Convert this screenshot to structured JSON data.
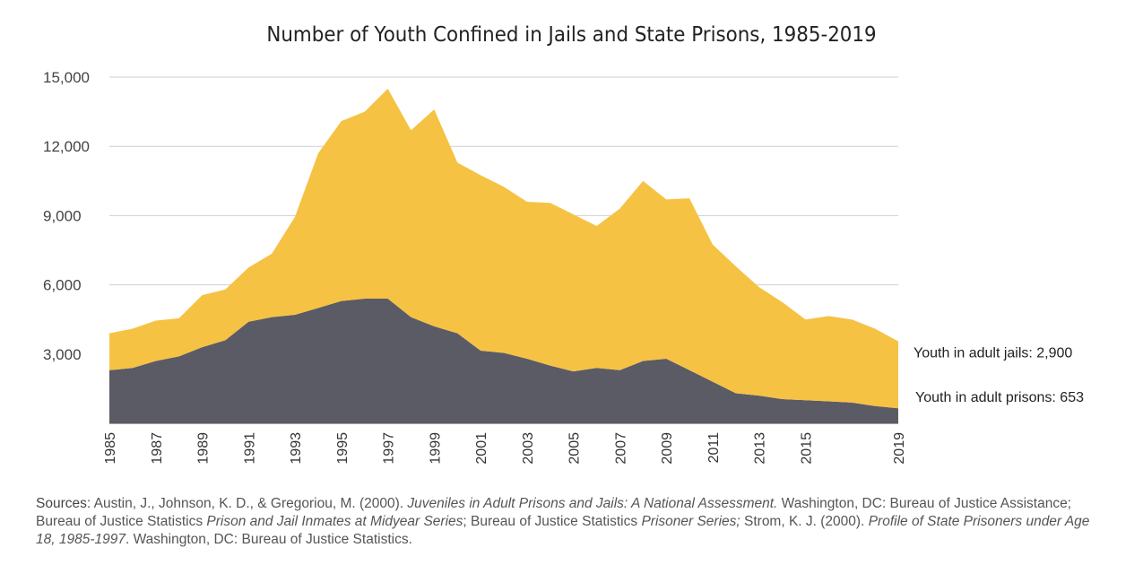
{
  "chart_data": {
    "type": "area",
    "stacked": true,
    "title": "Number of Youth Confined in Jails and State Prisons, 1985-2019",
    "xlabel": "",
    "ylabel": "",
    "ylim": [
      0,
      15000
    ],
    "yticks": [
      "3,000",
      "6,000",
      "9,000",
      "12,000",
      "15,000"
    ],
    "ytick_values": [
      3000,
      6000,
      9000,
      12000,
      15000
    ],
    "xticks": [
      "1985",
      "1987",
      "1989",
      "1991",
      "1993",
      "1995",
      "1997",
      "1999",
      "2001",
      "2003",
      "2005",
      "2007",
      "2009",
      "2011",
      "2013",
      "2015",
      "2019"
    ],
    "xtick_values": [
      1985,
      1987,
      1989,
      1991,
      1993,
      1995,
      1997,
      1999,
      2001,
      2003,
      2005,
      2007,
      2009,
      2011,
      2013,
      2015,
      2019
    ],
    "grid": true,
    "x": [
      1985,
      1986,
      1987,
      1988,
      1989,
      1990,
      1991,
      1992,
      1993,
      1994,
      1995,
      1996,
      1997,
      1998,
      1999,
      2000,
      2001,
      2002,
      2003,
      2004,
      2005,
      2006,
      2007,
      2008,
      2009,
      2010,
      2011,
      2012,
      2013,
      2014,
      2015,
      2016,
      2017,
      2018,
      2019
    ],
    "series": [
      {
        "name": "Youth in adult prisons",
        "color": "#5b5b66",
        "values": [
          2300,
          2400,
          2700,
          2900,
          3300,
          3600,
          4400,
          4600,
          4700,
          5000,
          5300,
          5400,
          5400,
          4600,
          4200,
          3900,
          3150,
          3050,
          2800,
          2500,
          2250,
          2400,
          2300,
          2700,
          2800,
          2300,
          1800,
          1300,
          1200,
          1050,
          1000,
          950,
          900,
          750,
          653
        ]
      },
      {
        "name": "Youth in adult jails",
        "color": "#f6c244",
        "values": [
          1600,
          1700,
          1750,
          1650,
          2250,
          2200,
          2350,
          2750,
          4250,
          6700,
          7800,
          8100,
          9100,
          8100,
          9400,
          7400,
          7600,
          7200,
          6800,
          7050,
          6800,
          6150,
          7000,
          7800,
          6900,
          7450,
          5950,
          5500,
          4700,
          4200,
          3500,
          3700,
          3600,
          3350,
          2900
        ]
      }
    ],
    "annotations": [
      {
        "text": "Youth in adult jails: 2,900",
        "series": 1
      },
      {
        "text": "Youth in adult prisons: 653",
        "series": 0
      }
    ]
  },
  "sources": {
    "label": "Sources",
    "parts": [
      {
        "text": ": Austin, J., Johnson, K. D., & Gregoriou, M. (2000). ",
        "italic": false
      },
      {
        "text": "Juveniles in Adult Prisons and Jails: A National Assessment.",
        "italic": true
      },
      {
        "text": " Washington, DC: Bureau of Justice Assistance; Bureau of Justice Statistics ",
        "italic": false
      },
      {
        "text": "Prison and Jail Inmates at Midyear Series",
        "italic": true
      },
      {
        "text": "; Bureau of Justice Statistics ",
        "italic": false
      },
      {
        "text": "Prisoner Series;",
        "italic": true
      },
      {
        "text": " Strom, K. J. (2000). ",
        "italic": false
      },
      {
        "text": "Profile of State Prisoners under Age 18, 1985-1997",
        "italic": true
      },
      {
        "text": ". Washington, DC: Bureau of Justice Statistics.",
        "italic": false
      }
    ]
  }
}
